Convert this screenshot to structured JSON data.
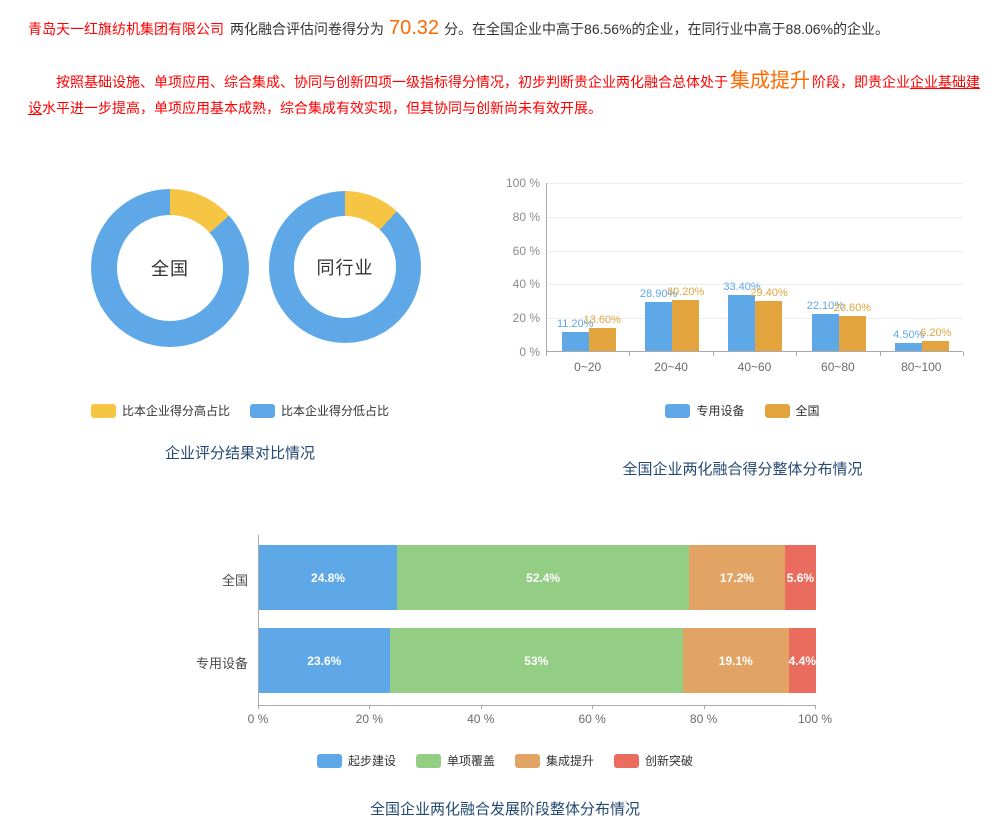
{
  "header": {
    "company": "青岛天一红旗纺机集团有限公司",
    "score_label": "两化融合评估问卷得分为",
    "score": "70.32",
    "after_score": "分。在全国企业中高于86.56%的企业，在同行业中高于88.06%的企业。"
  },
  "summary": {
    "part1": "按照基础设施、单项应用、综合集成、协同与创新四项一级指标得分情况，初步判断贵企业两化融合总体处于",
    "stage": "集成提升",
    "part2": "阶段，即贵企业",
    "underlined": "企业基础建设",
    "part3": "水平进一步提高，单项应用基本成熟，综合集成有效实现，但其协同与创新尚未有效开展。"
  },
  "chart_data": [
    {
      "type": "pie",
      "subtype": "donut-pair",
      "title": "企业评分结果对比情况",
      "colors": {
        "high": "#F6C544",
        "low": "#5FA8E8"
      },
      "legend": [
        {
          "label": "比本企业得分高占比",
          "color": "#F6C544"
        },
        {
          "label": "比本企业得分低占比",
          "color": "#5FA8E8"
        }
      ],
      "donuts": [
        {
          "label": "全国",
          "higher_pct": 13.44,
          "lower_pct": 86.56
        },
        {
          "label": "同行业",
          "higher_pct": 11.94,
          "lower_pct": 88.06
        }
      ]
    },
    {
      "type": "bar",
      "title": "全国企业两化融合得分整体分布情况",
      "categories": [
        "0~20",
        "20~40",
        "40~60",
        "60~80",
        "80~100"
      ],
      "series": [
        {
          "name": "专用设备",
          "color": "#5FA8E8",
          "values": [
            11.2,
            28.9,
            33.4,
            22.1,
            4.5
          ],
          "labels": [
            "11.20%",
            "28.90%",
            "33.40%",
            "22.10%",
            "4.50%"
          ]
        },
        {
          "name": "全国",
          "color": "#E3A33D",
          "values": [
            13.6,
            30.2,
            29.4,
            20.6,
            6.2
          ],
          "labels": [
            "13.60%",
            "30.20%",
            "29.40%",
            "20.60%",
            "6.20%"
          ]
        }
      ],
      "y_ticks": [
        "0 %",
        "20 %",
        "40 %",
        "60 %",
        "80 %",
        "100 %"
      ],
      "ylim": [
        0,
        100
      ],
      "grid": true,
      "legend_position": "bottom"
    },
    {
      "type": "bar",
      "subtype": "horizontal-stacked",
      "title": "全国企业两化融合发展阶段整体分布情况",
      "categories": [
        "全国",
        "专用设备"
      ],
      "legend": [
        {
          "label": "起步建设",
          "color": "#5FA8E8"
        },
        {
          "label": "单项覆盖",
          "color": "#94CE84"
        },
        {
          "label": "集成提升",
          "color": "#E1A465"
        },
        {
          "label": "创新突破",
          "color": "#E96C5F"
        }
      ],
      "rows": [
        {
          "label": "全国",
          "values": [
            24.8,
            52.4,
            17.2,
            5.6
          ],
          "labels": [
            "24.8%",
            "52.4%",
            "17.2%",
            "5.6%"
          ]
        },
        {
          "label": "专用设备",
          "values": [
            23.6,
            53,
            19.1,
            4.4
          ],
          "labels": [
            "23.6%",
            "53%",
            "19.1%",
            "4.4%"
          ]
        }
      ],
      "x_ticks": [
        "0 %",
        "20 %",
        "40 %",
        "60 %",
        "80 %",
        "100 %"
      ],
      "xlim": [
        0,
        100
      ],
      "legend_position": "bottom"
    }
  ]
}
